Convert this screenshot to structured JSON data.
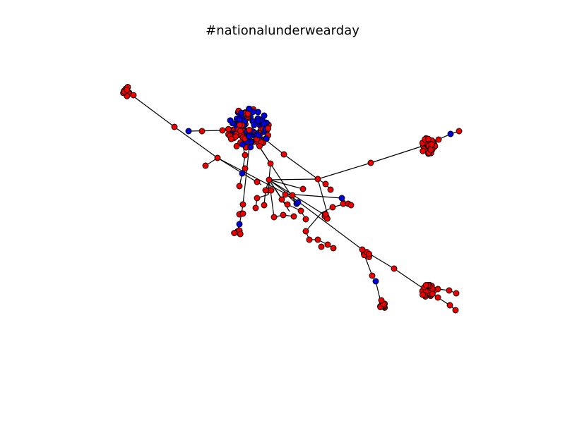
{
  "title": "#nationalunderwearday",
  "colors": {
    "red_node": "#ee0000",
    "blue_node": "#0000dd",
    "edge": "#000000",
    "background": "#ffffff"
  }
}
